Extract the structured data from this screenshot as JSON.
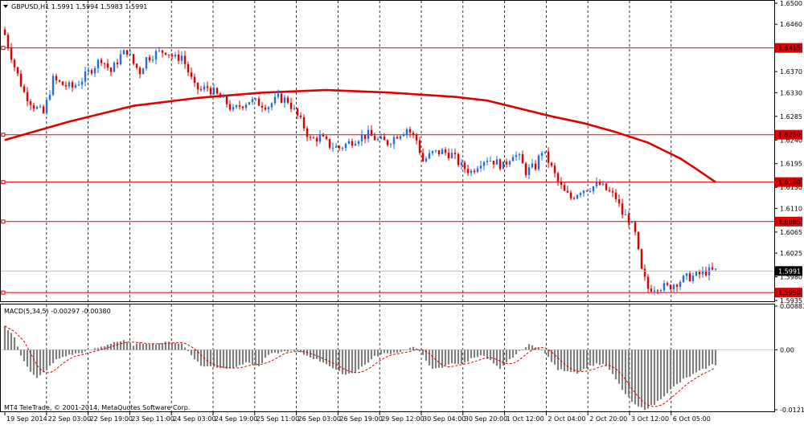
{
  "window": {
    "header": "GBPUSD,H1  1.5991 1.5994 1.5983 1.5991",
    "copyright": "MT4 TeleTrade, © 2001-2014, MetaQuotes Software Corp."
  },
  "colors": {
    "background": "#ffffff",
    "bull": "#1e6fd9",
    "bear": "#e00000",
    "ma": "#e00000",
    "hline": "#e00000",
    "grid": "#000000",
    "macd_hist": "#7f7f7f",
    "macd_signal": "#e00000"
  },
  "chart_data": [
    {
      "type": "candlestick",
      "symbol": "GBPUSD",
      "timeframe": "H1",
      "ohlc_header": {
        "open": 1.5991,
        "high": 1.5994,
        "low": 1.5983,
        "close": 1.5991
      },
      "y_ticks": [
        "1.6500",
        "1.6460",
        "1.6415",
        "1.6370",
        "1.6330",
        "1.6285",
        "1.6240",
        "1.6195",
        "1.6150",
        "1.6110",
        "1.6065",
        "1.6025",
        "1.5980",
        "1.5935"
      ],
      "ylim": [
        1.5935,
        1.65
      ],
      "x_ticks": [
        "19 Sep 2014",
        "22 Sep 03:00",
        "22 Sep 19:00",
        "23 Sep 11:00",
        "24 Sep 03:00",
        "24 Sep 19:00",
        "25 Sep 11:00",
        "26 Sep 03:00",
        "26 Sep 19:00",
        "29 Sep 12:00",
        "30 Sep 04:00",
        "30 Sep 20:00",
        "1 Oct 12:00",
        "2 Oct 04:00",
        "2 Oct 20:00",
        "3 Oct 12:00",
        "6 Oct 05:00"
      ],
      "horizontal_lines": [
        {
          "label": "1.6415",
          "value": 1.6415
        },
        {
          "label": "1.6250",
          "value": 1.625
        },
        {
          "label": "1.6160",
          "value": 1.616
        },
        {
          "label": "1.6085",
          "value": 1.6085
        },
        {
          "label": "1.5950",
          "value": 1.595
        }
      ],
      "current_price": {
        "label": "1.5991",
        "value": 1.5991
      },
      "close_path": [
        [
          0,
          1.644
        ],
        [
          3,
          1.638
        ],
        [
          6,
          1.633
        ],
        [
          9,
          1.6305
        ],
        [
          12,
          1.629
        ],
        [
          15,
          1.6355
        ],
        [
          18,
          1.6345
        ],
        [
          21,
          1.634
        ],
        [
          24,
          1.6355
        ],
        [
          27,
          1.6375
        ],
        [
          30,
          1.6395
        ],
        [
          33,
          1.637
        ],
        [
          36,
          1.64
        ],
        [
          38,
          1.641
        ],
        [
          40,
          1.6385
        ],
        [
          42,
          1.637
        ],
        [
          44,
          1.6395
        ],
        [
          47,
          1.6405
        ],
        [
          50,
          1.641
        ],
        [
          53,
          1.6395
        ],
        [
          55,
          1.64
        ],
        [
          57,
          1.637
        ],
        [
          59,
          1.634
        ],
        [
          61,
          1.6335
        ],
        [
          63,
          1.634
        ],
        [
          66,
          1.6325
        ],
        [
          69,
          1.631
        ],
        [
          71,
          1.6295
        ],
        [
          73,
          1.6305
        ],
        [
          76,
          1.6315
        ],
        [
          79,
          1.631
        ],
        [
          82,
          1.6305
        ],
        [
          85,
          1.632
        ],
        [
          88,
          1.6315
        ],
        [
          90,
          1.6295
        ],
        [
          93,
          1.6265
        ],
        [
          95,
          1.624
        ],
        [
          98,
          1.6245
        ],
        [
          101,
          1.623
        ],
        [
          104,
          1.6225
        ],
        [
          107,
          1.6235
        ],
        [
          110,
          1.6245
        ],
        [
          113,
          1.625
        ],
        [
          116,
          1.624
        ],
        [
          119,
          1.6235
        ],
        [
          122,
          1.625
        ],
        [
          125,
          1.6262
        ],
        [
          128,
          1.624
        ],
        [
          130,
          1.62
        ],
        [
          133,
          1.6215
        ],
        [
          136,
          1.6218
        ],
        [
          139,
          1.6212
        ],
        [
          142,
          1.619
        ],
        [
          145,
          1.618
        ],
        [
          148,
          1.62
        ],
        [
          150,
          1.6205
        ],
        [
          152,
          1.62
        ],
        [
          155,
          1.619
        ],
        [
          158,
          1.6215
        ],
        [
          160,
          1.6205
        ],
        [
          162,
          1.618
        ],
        [
          165,
          1.619
        ],
        [
          167,
          1.622
        ],
        [
          169,
          1.62
        ],
        [
          172,
          1.616
        ],
        [
          174,
          1.614
        ],
        [
          176,
          1.613
        ],
        [
          179,
          1.6145
        ],
        [
          182,
          1.615
        ],
        [
          185,
          1.6155
        ],
        [
          188,
          1.614
        ],
        [
          190,
          1.613
        ],
        [
          192,
          1.61
        ],
        [
          194,
          1.609
        ],
        [
          196,
          1.606
        ],
        [
          198,
          1.599
        ],
        [
          200,
          1.5958
        ],
        [
          203,
          1.5962
        ],
        [
          206,
          1.596
        ],
        [
          209,
          1.597
        ],
        [
          212,
          1.5978
        ],
        [
          215,
          1.5982
        ],
        [
          218,
          1.599
        ],
        [
          221,
          1.5991
        ]
      ],
      "moving_average_path": [
        [
          0,
          1.624
        ],
        [
          20,
          1.6275
        ],
        [
          40,
          1.6305
        ],
        [
          60,
          1.632
        ],
        [
          80,
          1.633
        ],
        [
          100,
          1.6335
        ],
        [
          120,
          1.633
        ],
        [
          140,
          1.6322
        ],
        [
          150,
          1.6315
        ],
        [
          160,
          1.63
        ],
        [
          170,
          1.6285
        ],
        [
          180,
          1.6272
        ],
        [
          190,
          1.6255
        ],
        [
          200,
          1.6235
        ],
        [
          205,
          1.622
        ],
        [
          210,
          1.6205
        ],
        [
          215,
          1.6185
        ],
        [
          221,
          1.616
        ]
      ]
    },
    {
      "type": "bar",
      "indicator": "MACD",
      "label": "MACD(5,34,5) -0.00297 -0.00380",
      "y_ticks": [
        "0.00883",
        "0.00",
        "-0.0121"
      ],
      "ylim": [
        -0.0121,
        0.00883
      ],
      "histogram_path": [
        [
          0,
          0.0048
        ],
        [
          3,
          0.0025
        ],
        [
          5,
          -0.001
        ],
        [
          8,
          -0.0045
        ],
        [
          10,
          -0.0058
        ],
        [
          13,
          -0.004
        ],
        [
          16,
          -0.002
        ],
        [
          19,
          -0.0012
        ],
        [
          22,
          -0.0008
        ],
        [
          25,
          -0.0004
        ],
        [
          28,
          0.0002
        ],
        [
          31,
          0.0008
        ],
        [
          34,
          0.0016
        ],
        [
          37,
          0.0018
        ],
        [
          40,
          0.001
        ],
        [
          43,
          0.0014
        ],
        [
          46,
          0.0012
        ],
        [
          49,
          0.0014
        ],
        [
          52,
          0.0016
        ],
        [
          55,
          0.0012
        ],
        [
          58,
          -0.001
        ],
        [
          61,
          -0.0032
        ],
        [
          64,
          -0.0034
        ],
        [
          67,
          -0.0036
        ],
        [
          70,
          -0.0038
        ],
        [
          73,
          -0.003
        ],
        [
          76,
          -0.0026
        ],
        [
          79,
          -0.0034
        ],
        [
          82,
          -0.001
        ],
        [
          85,
          -0.0006
        ],
        [
          88,
          -0.0002
        ],
        [
          91,
          -0.0004
        ],
        [
          94,
          -0.0012
        ],
        [
          97,
          -0.002
        ],
        [
          100,
          -0.0028
        ],
        [
          103,
          -0.0042
        ],
        [
          106,
          -0.005
        ],
        [
          109,
          -0.0044
        ],
        [
          112,
          -0.003
        ],
        [
          115,
          -0.0014
        ],
        [
          118,
          -0.0008
        ],
        [
          121,
          -0.0006
        ],
        [
          124,
          -0.0002
        ],
        [
          127,
          0.0006
        ],
        [
          130,
          -0.001
        ],
        [
          133,
          -0.004
        ],
        [
          136,
          -0.0036
        ],
        [
          139,
          -0.0026
        ],
        [
          142,
          -0.003
        ],
        [
          145,
          -0.0018
        ],
        [
          148,
          -0.001
        ],
        [
          151,
          -0.0022
        ],
        [
          154,
          -0.004
        ],
        [
          157,
          -0.002
        ],
        [
          160,
          -0.0004
        ],
        [
          163,
          0.001
        ],
        [
          166,
          0.0005
        ],
        [
          169,
          -0.0015
        ],
        [
          172,
          -0.004
        ],
        [
          175,
          -0.0042
        ],
        [
          178,
          -0.0046
        ],
        [
          181,
          -0.0036
        ],
        [
          184,
          -0.0028
        ],
        [
          187,
          -0.0032
        ],
        [
          190,
          -0.006
        ],
        [
          193,
          -0.009
        ],
        [
          196,
          -0.0112
        ],
        [
          199,
          -0.012
        ],
        [
          202,
          -0.011
        ],
        [
          205,
          -0.0092
        ],
        [
          208,
          -0.0075
        ],
        [
          211,
          -0.006
        ],
        [
          214,
          -0.005
        ],
        [
          217,
          -0.004
        ],
        [
          220,
          -0.003
        ],
        [
          221,
          -0.003
        ]
      ],
      "signal_lag": 3
    }
  ]
}
